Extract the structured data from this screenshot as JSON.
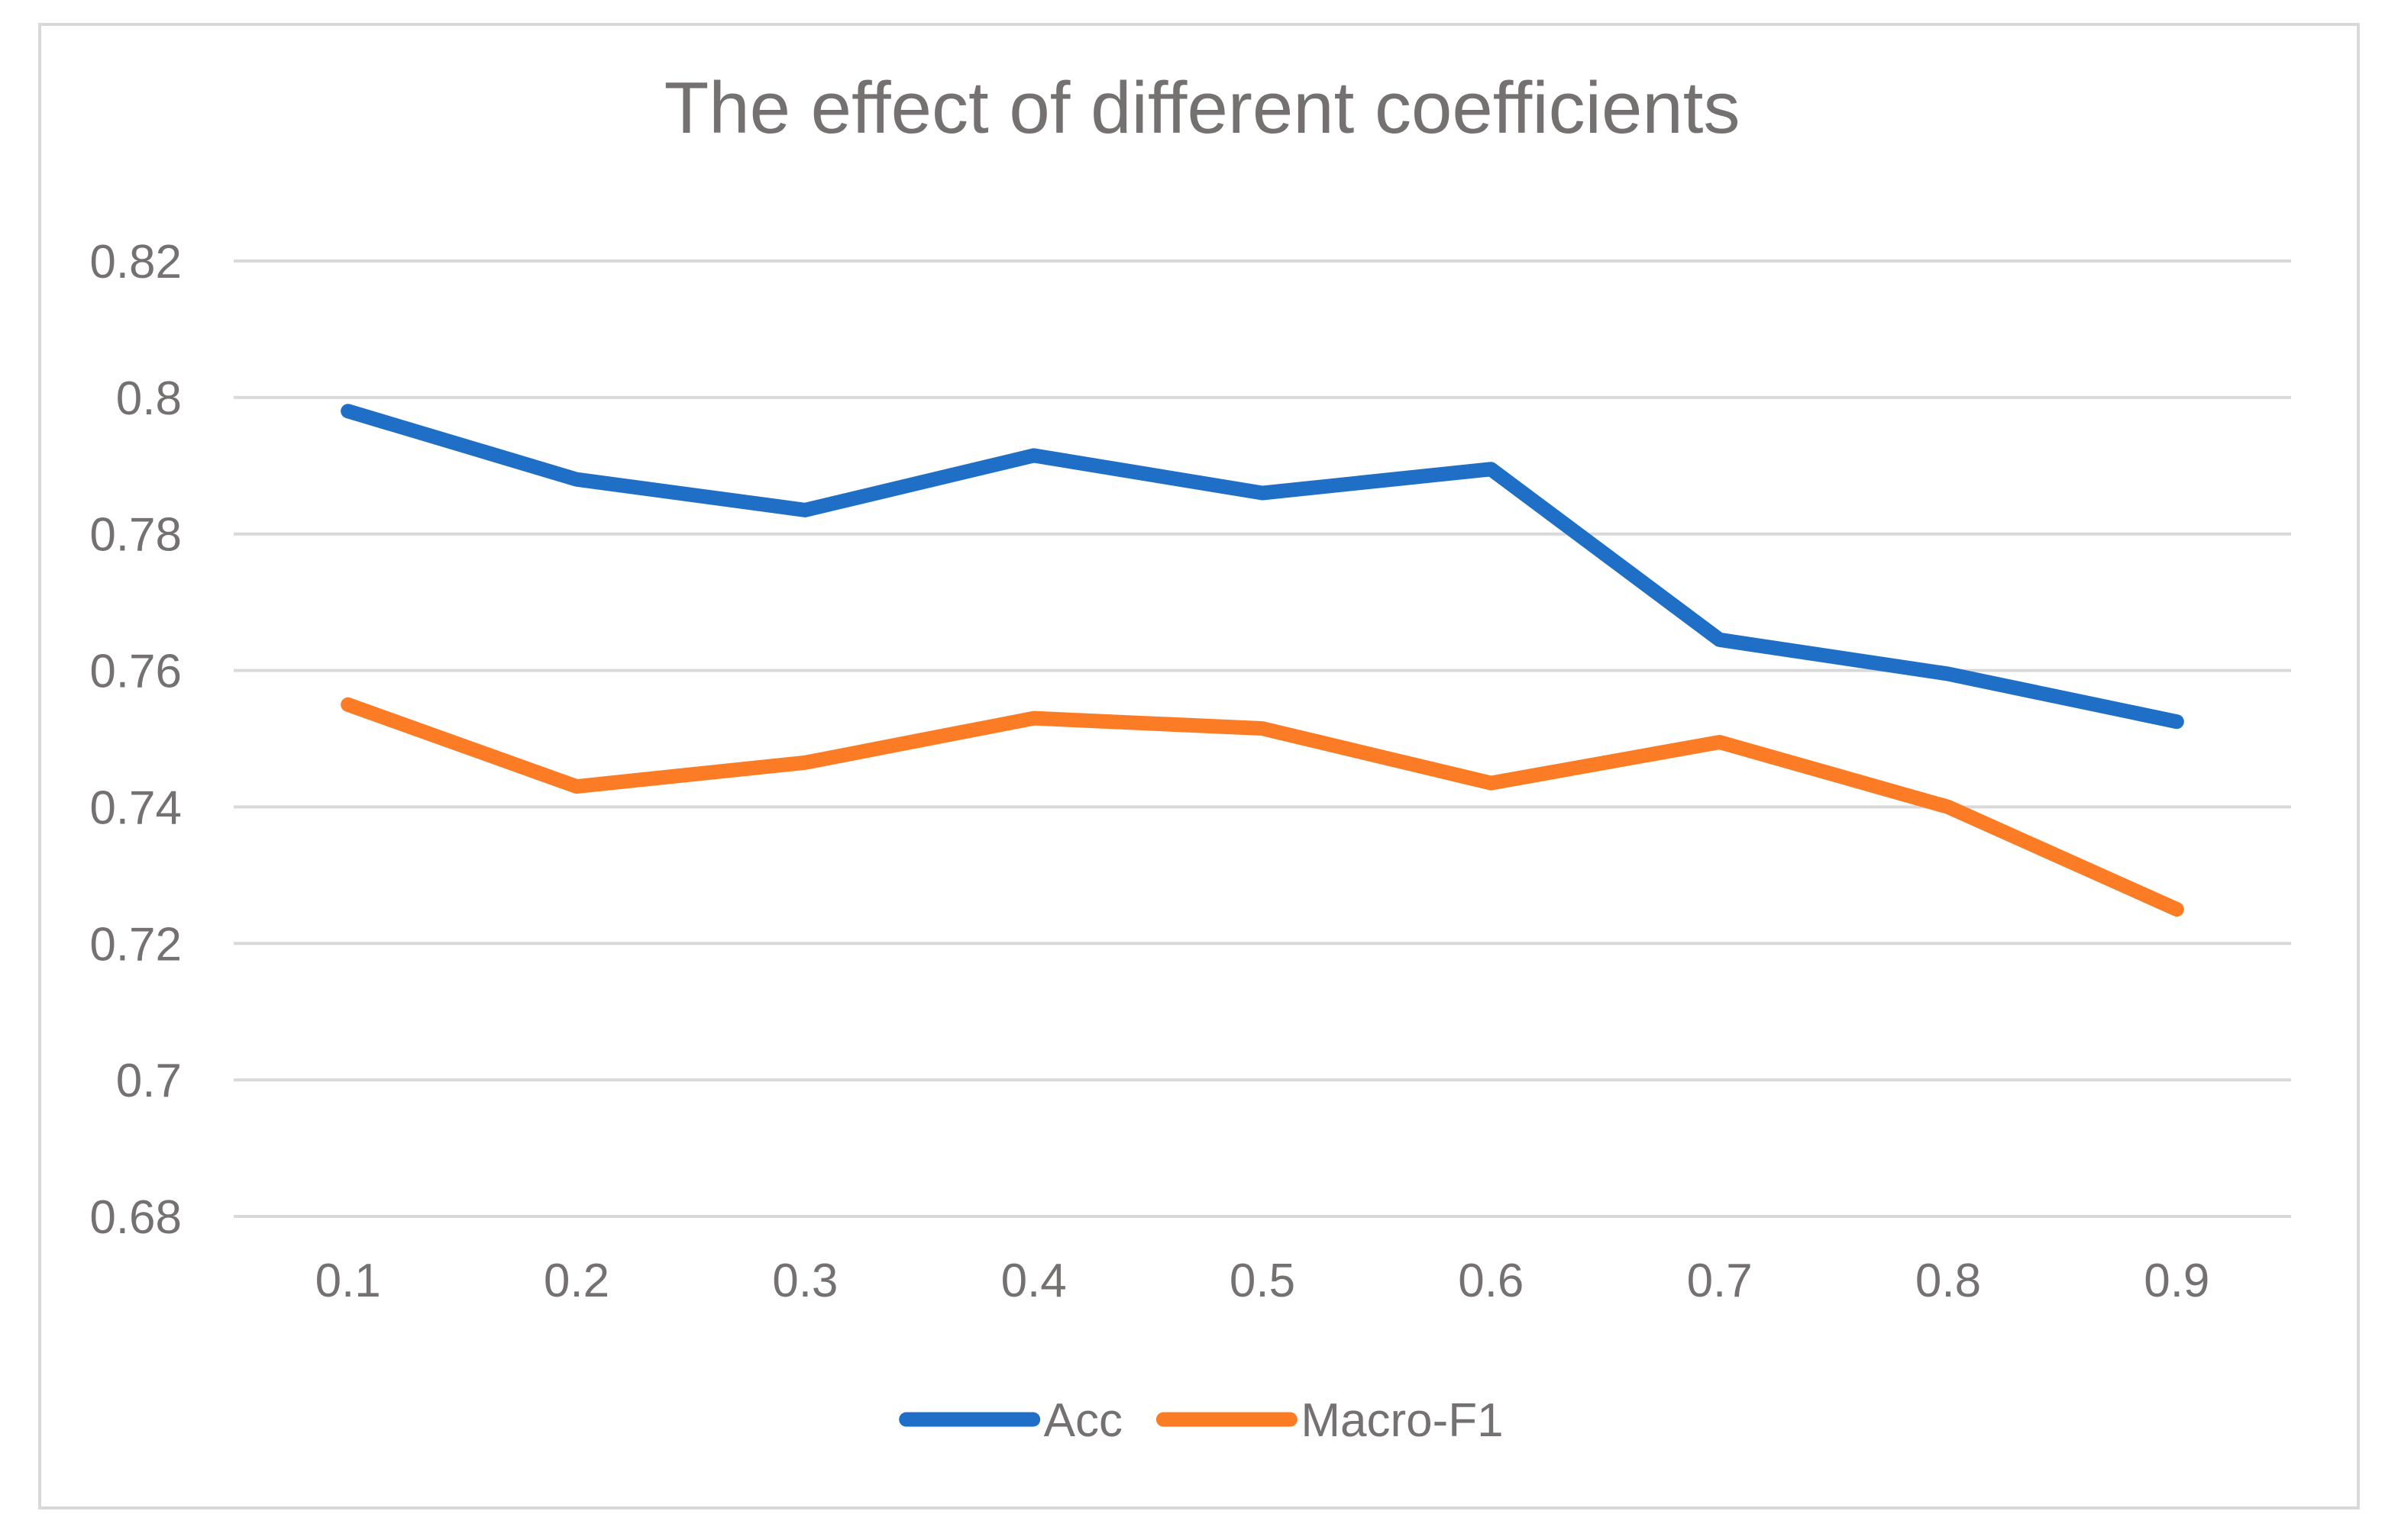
{
  "chart_data": {
    "type": "line",
    "title": "The effect of different coefficients",
    "xlabel": "",
    "ylabel": "",
    "categories": [
      "0.1",
      "0.2",
      "0.3",
      "0.4",
      "0.5",
      "0.6",
      "0.7",
      "0.8",
      "0.9"
    ],
    "series": [
      {
        "name": "Acc",
        "color": "#1f6fc6",
        "values": [
          0.798,
          0.788,
          0.7835,
          0.7915,
          0.786,
          0.7895,
          0.7645,
          0.7595,
          0.7525
        ]
      },
      {
        "name": "Macro-F1",
        "color": "#fb7c25",
        "values": [
          0.755,
          0.743,
          0.7465,
          0.753,
          0.7515,
          0.7435,
          0.7495,
          0.74,
          0.725
        ]
      }
    ],
    "ylim": [
      0.68,
      0.82
    ],
    "yticks": [
      "0.68",
      "0.7",
      "0.72",
      "0.74",
      "0.76",
      "0.78",
      "0.8",
      "0.82"
    ],
    "grid": true,
    "legend_position": "bottom"
  }
}
